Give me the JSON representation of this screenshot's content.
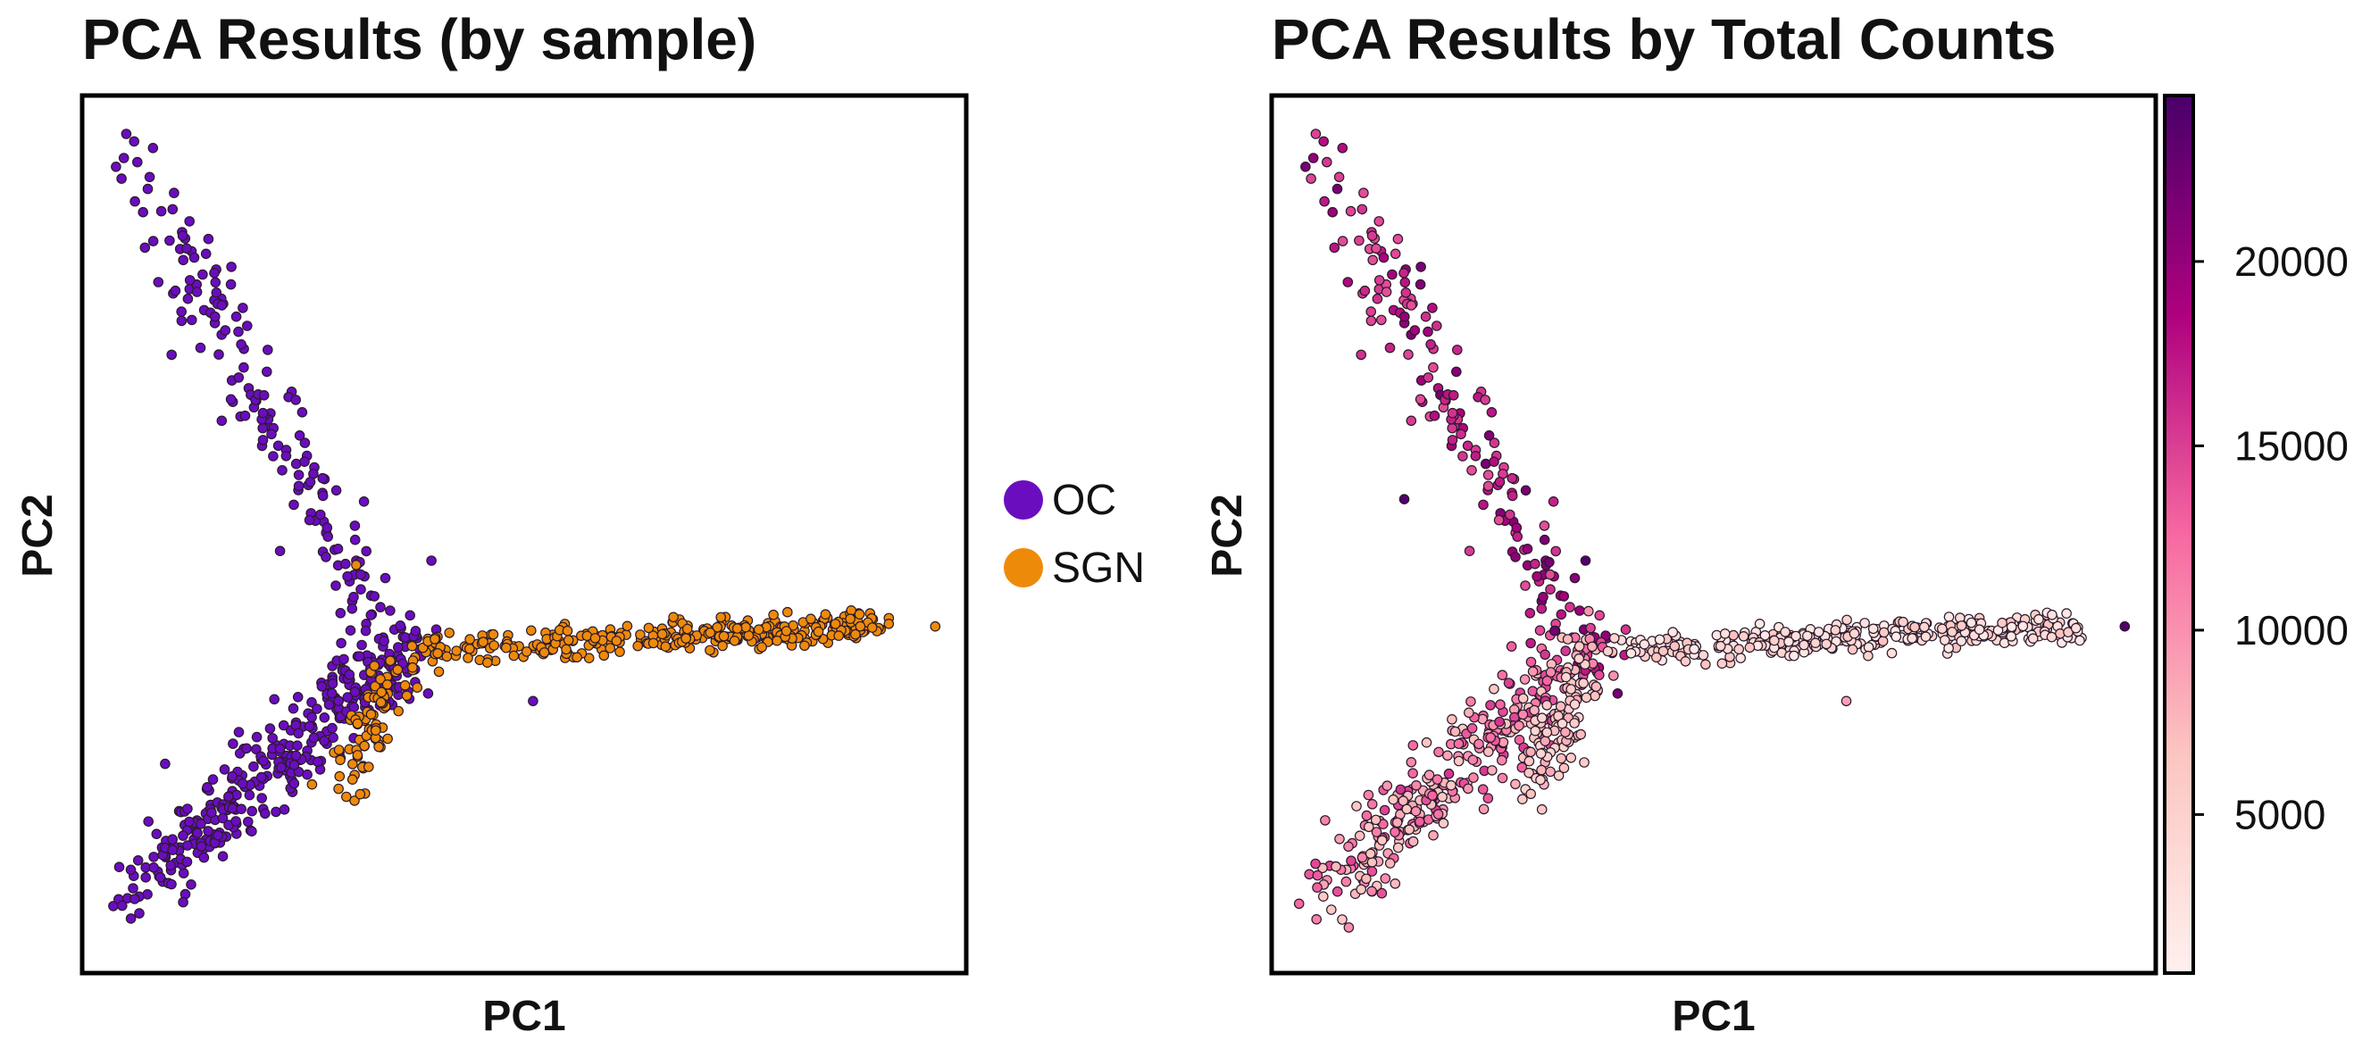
{
  "chart_data": [
    {
      "type": "scatter",
      "title": "PCA Results (by sample)",
      "xlabel": "PC1",
      "ylabel": "PC2",
      "axis_ticks": "none",
      "grid": false,
      "legend_position": "right",
      "legend": [
        {
          "label": "OC",
          "color": "#6a0dbf"
        },
        {
          "label": "SGN",
          "color": "#ee8a0a"
        }
      ],
      "colors": {
        "OC": "#6a0dbf",
        "SGN": "#ee8a0a"
      },
      "xlim": [
        0,
        100
      ],
      "ylim": [
        0,
        100
      ],
      "series": [
        {
          "name": "OC",
          "arm": "upper_left",
          "from": [
            4,
            96
          ],
          "to": [
            37,
            34
          ],
          "count": 190,
          "spread": 2.0
        },
        {
          "name": "OC",
          "arm": "lower_left_core",
          "from": [
            5,
            8
          ],
          "to": [
            36,
            37
          ],
          "count": 330,
          "spread": 2.1
        },
        {
          "name": "SGN",
          "arm": "right_arm",
          "from": [
            38,
            37
          ],
          "to": [
            91,
            39.5
          ],
          "count": 330,
          "spread": 1.0
        },
        {
          "name": "SGN",
          "arm": "lower_branch",
          "from": [
            36,
            36
          ],
          "to": [
            30,
            22
          ],
          "count": 80,
          "spread": 1.6
        }
      ],
      "outliers": [
        {
          "name": "SGN",
          "x": 96.5,
          "y": 39.5
        },
        {
          "name": "OC",
          "x": 51,
          "y": 31
        },
        {
          "name": "OC",
          "x": 39.5,
          "y": 47
        },
        {
          "name": "SGN",
          "x": 31,
          "y": 46.5
        },
        {
          "name": "SGN",
          "x": 26,
          "y": 21.5
        },
        {
          "name": "SGN",
          "x": 29,
          "y": 21
        }
      ]
    },
    {
      "type": "scatter",
      "title": "PCA Results by Total Counts",
      "xlabel": "PC1",
      "ylabel": "PC2",
      "axis_ticks": "none",
      "grid": false,
      "colorbar": {
        "min": 700,
        "max": 24500,
        "ticks": [
          "5000",
          "10000",
          "15000",
          "20000"
        ],
        "tick_values": [
          5000,
          10000,
          15000,
          20000
        ],
        "colormap": [
          "#fff0ee",
          "#fcc5c0",
          "#f768a1",
          "#ae017e",
          "#49006a"
        ]
      },
      "xlim": [
        0,
        100
      ],
      "ylim": [
        0,
        100
      ],
      "series": [
        {
          "name": "upper_left",
          "from": [
            4,
            96
          ],
          "to": [
            37,
            34
          ],
          "count": 190,
          "spread": 2.0,
          "total_counts_range": [
            14000,
            22000
          ]
        },
        {
          "name": "lower_left_core",
          "from": [
            5,
            8
          ],
          "to": [
            36,
            37
          ],
          "count": 330,
          "spread": 2.1,
          "total_counts_range": [
            6000,
            16000
          ]
        },
        {
          "name": "right_arm",
          "from": [
            38,
            37
          ],
          "to": [
            91,
            39.5
          ],
          "count": 330,
          "spread": 1.0,
          "total_counts_range": [
            1500,
            7000
          ]
        },
        {
          "name": "lower_branch",
          "from": [
            36,
            36
          ],
          "to": [
            30,
            22
          ],
          "count": 80,
          "spread": 1.6,
          "total_counts_range": [
            4000,
            9000
          ]
        }
      ],
      "outliers": [
        {
          "x": 96.5,
          "y": 39.5,
          "total_counts": 24000
        },
        {
          "x": 35.5,
          "y": 47,
          "total_counts": 24000
        },
        {
          "x": 15,
          "y": 54,
          "total_counts": 24000
        },
        {
          "x": 32,
          "y": 39,
          "total_counts": 22000
        },
        {
          "x": 65,
          "y": 31,
          "total_counts": 9000
        }
      ]
    }
  ]
}
